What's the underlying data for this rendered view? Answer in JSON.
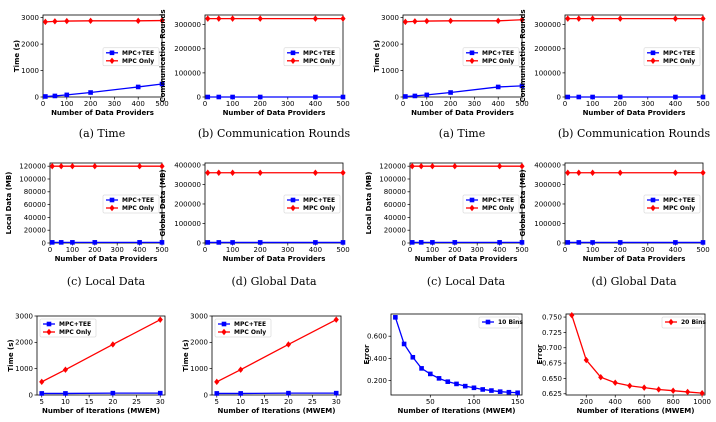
{
  "figure": {
    "captions": [
      "(a) Time",
      "(b) Communication Rounds",
      "(a) Time",
      "(b) Communication Rounds",
      "(c) Local Data",
      "(d) Global Data",
      "(c) Local Data",
      "(d) Global Data"
    ]
  },
  "chart_data": [
    {
      "type": "line",
      "caption": "(a) Time",
      "xlabel": "Number of Data Providers",
      "ylabel": "Time (s)",
      "xlim": [
        0,
        500
      ],
      "xticks": [
        0,
        100,
        200,
        300,
        400,
        500
      ],
      "ylim": [
        0,
        3100
      ],
      "yticks": [
        0,
        1000,
        2000,
        3000
      ],
      "legend": "center-right",
      "series": [
        {
          "name": "MPC+TEE",
          "color": "#0000ff",
          "marker": "square",
          "x": [
            10,
            50,
            100,
            200,
            400,
            500
          ],
          "values": [
            20,
            40,
            80,
            170,
            380,
            490
          ]
        },
        {
          "name": "MPC Only",
          "color": "#ff0000",
          "marker": "diamond",
          "x": [
            10,
            50,
            100,
            200,
            400,
            500
          ],
          "values": [
            2840,
            2860,
            2870,
            2880,
            2880,
            2890
          ]
        }
      ]
    },
    {
      "type": "line",
      "caption": "(b) Communication Rounds",
      "xlabel": "Number of Data Providers",
      "ylabel": "Communication Rounds",
      "xlim": [
        0,
        500
      ],
      "xticks": [
        0,
        100,
        200,
        300,
        400,
        500
      ],
      "ylim": [
        0,
        340000
      ],
      "yticks": [
        0,
        100000,
        200000,
        300000
      ],
      "legend": "center-right",
      "series": [
        {
          "name": "MPC+TEE",
          "color": "#0000ff",
          "marker": "square",
          "x": [
            10,
            50,
            100,
            200,
            400,
            500
          ],
          "values": [
            4,
            4,
            4,
            4,
            4,
            4
          ]
        },
        {
          "name": "MPC Only",
          "color": "#ff0000",
          "marker": "diamond",
          "x": [
            10,
            50,
            100,
            200,
            400,
            500
          ],
          "values": [
            325000,
            325000,
            325000,
            325000,
            325000,
            325000
          ]
        }
      ]
    },
    {
      "type": "line",
      "caption": "(a) Time",
      "xlabel": "Number of Data Providers",
      "ylabel": "Time (s)",
      "xlim": [
        0,
        500
      ],
      "xticks": [
        0,
        100,
        200,
        300,
        400,
        500
      ],
      "ylim": [
        0,
        3100
      ],
      "yticks": [
        0,
        1000,
        2000,
        3000
      ],
      "legend": "center-right",
      "series": [
        {
          "name": "MPC+TEE",
          "color": "#0000ff",
          "marker": "square",
          "x": [
            10,
            50,
            100,
            200,
            400,
            500
          ],
          "values": [
            20,
            40,
            80,
            170,
            380,
            420
          ]
        },
        {
          "name": "MPC Only",
          "color": "#ff0000",
          "marker": "diamond",
          "x": [
            10,
            50,
            100,
            200,
            400,
            500
          ],
          "values": [
            2840,
            2860,
            2870,
            2880,
            2880,
            2920
          ]
        }
      ]
    },
    {
      "type": "line",
      "caption": "(b) Communication Rounds",
      "xlabel": "Number of Data Providers",
      "ylabel": "Communication Rounds",
      "xlim": [
        0,
        500
      ],
      "xticks": [
        0,
        100,
        200,
        300,
        400,
        500
      ],
      "ylim": [
        0,
        340000
      ],
      "yticks": [
        0,
        100000,
        200000,
        300000
      ],
      "legend": "center-right",
      "series": [
        {
          "name": "MPC+TEE",
          "color": "#0000ff",
          "marker": "square",
          "x": [
            10,
            50,
            100,
            200,
            400,
            500
          ],
          "values": [
            4,
            4,
            4,
            4,
            4,
            4
          ]
        },
        {
          "name": "MPC Only",
          "color": "#ff0000",
          "marker": "diamond",
          "x": [
            10,
            50,
            100,
            200,
            400,
            500
          ],
          "values": [
            325000,
            325000,
            325000,
            325000,
            325000,
            325000
          ]
        }
      ]
    },
    {
      "type": "line",
      "caption": "(c) Local Data",
      "xlabel": "Number of Data Providers",
      "ylabel": "Local Data (MB)",
      "xlim": [
        0,
        500
      ],
      "xticks": [
        0,
        100,
        200,
        300,
        400,
        500
      ],
      "ylim": [
        0,
        125000
      ],
      "yticks": [
        0,
        20000,
        40000,
        60000,
        80000,
        100000,
        120000
      ],
      "legend": "center-right",
      "series": [
        {
          "name": "MPC+TEE",
          "color": "#0000ff",
          "marker": "square",
          "x": [
            10,
            50,
            100,
            200,
            400,
            500
          ],
          "values": [
            1000,
            1000,
            1000,
            1000,
            1000,
            1000
          ]
        },
        {
          "name": "MPC Only",
          "color": "#ff0000",
          "marker": "diamond",
          "x": [
            10,
            50,
            100,
            200,
            400,
            500
          ],
          "values": [
            120000,
            120000,
            120000,
            120000,
            120000,
            120000
          ]
        }
      ]
    },
    {
      "type": "line",
      "caption": "(d) Global Data",
      "xlabel": "Number of Data Providers",
      "ylabel": "Global Data (MB)",
      "xlim": [
        0,
        500
      ],
      "xticks": [
        0,
        100,
        200,
        300,
        400,
        500
      ],
      "ylim": [
        0,
        410000
      ],
      "yticks": [
        0,
        100000,
        200000,
        300000,
        400000
      ],
      "legend": "center-right",
      "series": [
        {
          "name": "MPC+TEE",
          "color": "#0000ff",
          "marker": "square",
          "x": [
            10,
            50,
            100,
            200,
            400,
            500
          ],
          "values": [
            3000,
            3000,
            3000,
            3000,
            3000,
            3000
          ]
        },
        {
          "name": "MPC Only",
          "color": "#ff0000",
          "marker": "diamond",
          "x": [
            10,
            50,
            100,
            200,
            400,
            500
          ],
          "values": [
            360000,
            360000,
            360000,
            360000,
            360000,
            360000
          ]
        }
      ]
    },
    {
      "type": "line",
      "caption": "(c) Local Data",
      "xlabel": "Number of Data Providers",
      "ylabel": "Local Data (MB)",
      "xlim": [
        0,
        500
      ],
      "xticks": [
        0,
        100,
        200,
        300,
        400,
        500
      ],
      "ylim": [
        0,
        125000
      ],
      "yticks": [
        0,
        20000,
        40000,
        60000,
        80000,
        100000,
        120000
      ],
      "legend": "center-right",
      "series": [
        {
          "name": "MPC+TEE",
          "color": "#0000ff",
          "marker": "square",
          "x": [
            10,
            50,
            100,
            200,
            400,
            500
          ],
          "values": [
            1000,
            1000,
            1000,
            1000,
            1000,
            1000
          ]
        },
        {
          "name": "MPC Only",
          "color": "#ff0000",
          "marker": "diamond",
          "x": [
            10,
            50,
            100,
            200,
            400,
            500
          ],
          "values": [
            120000,
            120000,
            120000,
            120000,
            120000,
            120000
          ]
        }
      ]
    },
    {
      "type": "line",
      "caption": "(d) Global Data",
      "xlabel": "Number of Data Providers",
      "ylabel": "Global Data (MB)",
      "xlim": [
        0,
        500
      ],
      "xticks": [
        0,
        100,
        200,
        300,
        400,
        500
      ],
      "ylim": [
        0,
        410000
      ],
      "yticks": [
        0,
        100000,
        200000,
        300000,
        400000
      ],
      "legend": "center-right",
      "series": [
        {
          "name": "MPC+TEE",
          "color": "#0000ff",
          "marker": "square",
          "x": [
            10,
            50,
            100,
            200,
            400,
            500
          ],
          "values": [
            3000,
            3000,
            3000,
            3000,
            3000,
            3000
          ]
        },
        {
          "name": "MPC Only",
          "color": "#ff0000",
          "marker": "diamond",
          "x": [
            10,
            50,
            100,
            200,
            400,
            500
          ],
          "values": [
            360000,
            360000,
            360000,
            360000,
            360000,
            360000
          ]
        }
      ]
    },
    {
      "type": "line",
      "xlabel": "Number of Iterations (MWEM)",
      "ylabel": "Time (s)",
      "xlim": [
        4,
        31
      ],
      "xticks": [
        5,
        10,
        15,
        20,
        25,
        30
      ],
      "ylim": [
        0,
        3000
      ],
      "yticks": [
        0,
        1000,
        2000,
        3000
      ],
      "legend": "top-left",
      "series": [
        {
          "name": "MPC+TEE",
          "color": "#0000ff",
          "marker": "square",
          "x": [
            5,
            10,
            20,
            30
          ],
          "values": [
            60,
            60,
            70,
            70
          ]
        },
        {
          "name": "MPC Only",
          "color": "#ff0000",
          "marker": "diamond",
          "x": [
            5,
            10,
            20,
            30
          ],
          "values": [
            500,
            960,
            1920,
            2860
          ]
        }
      ]
    },
    {
      "type": "line",
      "xlabel": "Number of Iterations (MWEM)",
      "ylabel": "Time (s)",
      "xlim": [
        4,
        31
      ],
      "xticks": [
        5,
        10,
        15,
        20,
        25,
        30
      ],
      "ylim": [
        0,
        3000
      ],
      "yticks": [
        0,
        1000,
        2000,
        3000
      ],
      "legend": "top-left",
      "series": [
        {
          "name": "MPC+TEE",
          "color": "#0000ff",
          "marker": "square",
          "x": [
            5,
            10,
            20,
            30
          ],
          "values": [
            60,
            60,
            70,
            70
          ]
        },
        {
          "name": "MPC Only",
          "color": "#ff0000",
          "marker": "diamond",
          "x": [
            5,
            10,
            20,
            30
          ],
          "values": [
            500,
            960,
            1920,
            2860
          ]
        }
      ]
    },
    {
      "type": "line",
      "xlabel": "Number of Iterations (MWEM)",
      "ylabel": "Error",
      "xlim": [
        5,
        155
      ],
      "xticks": [
        50,
        100,
        150
      ],
      "ylim": [
        0.07,
        0.8
      ],
      "yticks": [
        0.2,
        0.4,
        0.6
      ],
      "legend": "top-right",
      "series": [
        {
          "name": "10 Bins",
          "color": "#0000ff",
          "marker": "square",
          "x": [
            10,
            20,
            30,
            40,
            50,
            60,
            70,
            80,
            90,
            100,
            110,
            120,
            130,
            140,
            150
          ],
          "values": [
            0.77,
            0.53,
            0.41,
            0.31,
            0.26,
            0.22,
            0.19,
            0.17,
            0.15,
            0.135,
            0.12,
            0.11,
            0.1,
            0.095,
            0.09
          ]
        }
      ]
    },
    {
      "type": "line",
      "xlabel": "Number of Iterations (MWEM)",
      "ylabel": "Error",
      "xlim": [
        60,
        1020
      ],
      "xticks": [
        200,
        400,
        600,
        800,
        1000
      ],
      "ylim": [
        0.623,
        0.755
      ],
      "yticks": [
        0.625,
        0.65,
        0.675,
        0.7,
        0.725,
        0.75
      ],
      "legend": "top-right",
      "series": [
        {
          "name": "20 Bins",
          "color": "#ff0000",
          "marker": "diamond",
          "x": [
            100,
            200,
            300,
            400,
            500,
            600,
            700,
            800,
            900,
            1000
          ],
          "values": [
            0.753,
            0.68,
            0.652,
            0.643,
            0.638,
            0.635,
            0.632,
            0.63,
            0.628,
            0.626
          ]
        }
      ]
    }
  ]
}
